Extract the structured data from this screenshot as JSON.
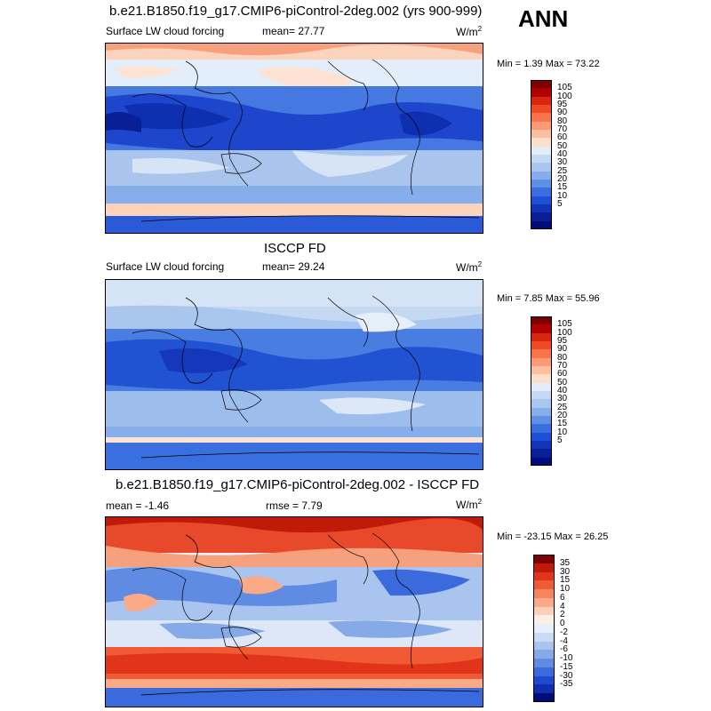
{
  "season": "ANN",
  "panels": [
    {
      "title": "b.e21.B1850.f19_g17.CMIP6-piControl-2deg.002 (yrs 900-999)",
      "left_label": "Surface LW cloud forcing",
      "center_label": "mean=  27.77",
      "units": "W/m",
      "units_sup": "2",
      "minmax": "Min =   1.39 Max =  73.22",
      "colorbar": {
        "colors": [
          "#7f0000",
          "#b00000",
          "#d92610",
          "#ef4a24",
          "#f7744c",
          "#fb9a74",
          "#fdbfa0",
          "#fde0cc",
          "#e3ecf8",
          "#c5d9f2",
          "#a8c6ee",
          "#86aeea",
          "#5e90e6",
          "#3a6fe0",
          "#1f4fd6",
          "#1235b8",
          "#081f96",
          "#000c7a"
        ],
        "ticks": [
          "105",
          "100",
          "95",
          "90",
          "80",
          "70",
          "60",
          "50",
          "40",
          "30",
          "25",
          "20",
          "15",
          "10",
          "5"
        ]
      }
    },
    {
      "title": "ISCCP FD",
      "left_label": "Surface LW cloud forcing",
      "center_label": "mean=  29.24",
      "units": "W/m",
      "units_sup": "2",
      "minmax": "Min =   7.85 Max =  55.96",
      "colorbar": {
        "colors": [
          "#7f0000",
          "#b00000",
          "#d92610",
          "#ef4a24",
          "#f7744c",
          "#fb9a74",
          "#fdbfa0",
          "#fde0cc",
          "#e3ecf8",
          "#c5d9f2",
          "#a8c6ee",
          "#86aeea",
          "#5e90e6",
          "#3a6fe0",
          "#1f4fd6",
          "#1235b8",
          "#081f96",
          "#000c7a"
        ],
        "ticks": [
          "105",
          "100",
          "95",
          "90",
          "80",
          "70",
          "60",
          "50",
          "40",
          "30",
          "25",
          "20",
          "15",
          "10",
          "5"
        ]
      }
    },
    {
      "title": "b.e21.B1850.f19_g17.CMIP6-piControl-2deg.002 - ISCCP FD",
      "left_label": "mean =  -1.46",
      "center_label": "rmse =   7.79",
      "units": "W/m",
      "units_sup": "2",
      "minmax": "Min = -23.15 Max =  26.25",
      "colorbar": {
        "colors": [
          "#7f0000",
          "#c01a0a",
          "#e2341a",
          "#f05a34",
          "#f7845c",
          "#fbaa88",
          "#fdd0b8",
          "#fdeee4",
          "#e6eefa",
          "#c9dbf4",
          "#a9c4ee",
          "#86aae8",
          "#5f8ce2",
          "#3b6adc",
          "#1f4ad0",
          "#0f2fb0",
          "#000c7a"
        ],
        "ticks": [
          "35",
          "30",
          "15",
          "10",
          "6",
          "4",
          "2",
          "0",
          "-2",
          "-4",
          "-6",
          "-10",
          "-15",
          "-30",
          "-35"
        ]
      }
    }
  ]
}
